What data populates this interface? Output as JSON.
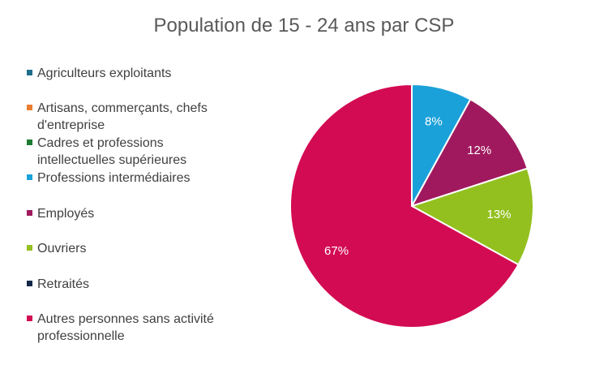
{
  "chart_data": {
    "type": "pie",
    "title": "Population de 15 - 24 ans par CSP",
    "categories": [
      "Agriculteurs exploitants",
      "Artisans, commerçants, chefs d'entreprise",
      "Cadres et professions intellectuelles supérieures",
      "Professions intermédiaires",
      "Employés",
      "Ouvriers",
      "Retraités",
      "Autres personnes sans activité professionnelle"
    ],
    "legend_lines": [
      [
        "Agriculteurs exploitants"
      ],
      [
        "Artisans, commerçants, chefs",
        "d'entreprise"
      ],
      [
        "Cadres et professions",
        "intellectuelles supérieures"
      ],
      [
        "Professions intermédiaires"
      ],
      [
        "Employés"
      ],
      [
        "Ouvriers"
      ],
      [
        "Retraités"
      ],
      [
        "Autres personnes sans activité",
        "professionnelle"
      ]
    ],
    "values": [
      0,
      0,
      0,
      8,
      12,
      13,
      0,
      67
    ],
    "data_labels": [
      "",
      "",
      "",
      "8%",
      "12%",
      "13%",
      "",
      "67%"
    ],
    "colors": [
      "#1F6E8C",
      "#ED7D31",
      "#1E7B34",
      "#1BA1D9",
      "#A0195E",
      "#93C01F",
      "#12294A",
      "#D30B52"
    ],
    "legend_position": "left",
    "start_angle_deg": 0,
    "direction": "clockwise"
  }
}
